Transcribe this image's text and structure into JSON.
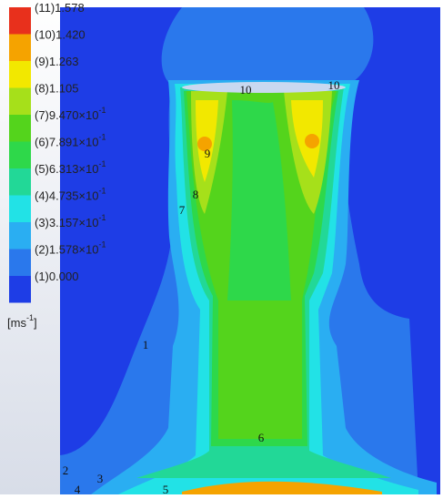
{
  "chart_data": {
    "type": "contour",
    "levels": [
      {
        "value": 1.578,
        "label": "(11)1.578",
        "color": "#e8301c"
      },
      {
        "value": 1.42,
        "label": "(10)1.420",
        "color": "#f5a300"
      },
      {
        "value": 1.263,
        "label": "(9)1.263",
        "color": "#f2e800"
      },
      {
        "value": 1.105,
        "label": "(8)1.105",
        "color": "#a6e01a"
      },
      {
        "value": 0.947,
        "label": "(7)9.470×10",
        "exponent": "-1",
        "color": "#54d41c"
      },
      {
        "value": 0.7891,
        "label": "(6)7.891×10",
        "exponent": "-1",
        "color": "#2ed84a"
      },
      {
        "value": 0.6313,
        "label": "(5)6.313×10",
        "exponent": "-1",
        "color": "#22d897"
      },
      {
        "value": 0.4735,
        "label": "(4)4.735×10",
        "exponent": "-1",
        "color": "#22e2e6"
      },
      {
        "value": 0.3157,
        "label": "(3)3.157×10",
        "exponent": "-1",
        "color": "#2aaef2"
      },
      {
        "value": 0.1578,
        "label": "(2)1.578×10",
        "exponent": "-1",
        "color": "#2a78ec"
      },
      {
        "value": 0,
        "label": "(1)0.000",
        "color": "#1e3de6"
      }
    ],
    "unit": "[ms",
    "unit_exponent": "-1",
    "unit_close": "]",
    "contour_labels": [
      "10",
      "10",
      "9",
      "8",
      "7",
      "6",
      "1",
      "2",
      "3",
      "4",
      "5"
    ]
  }
}
